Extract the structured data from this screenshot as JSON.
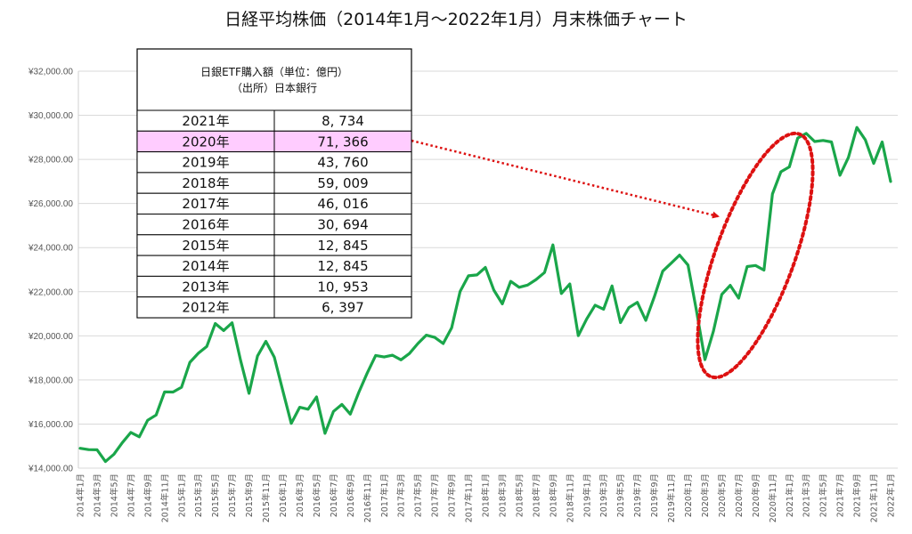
{
  "chart_data": {
    "type": "line",
    "title": "日経平均株価（2014年1月～2022年1月）月末株価チャート",
    "xlabel": "",
    "ylabel": "",
    "ylim": [
      14000,
      32000
    ],
    "yticks": [
      "¥14,000.00",
      "¥16,000.00",
      "¥18,000.00",
      "¥20,000.00",
      "¥22,000.00",
      "¥24,000.00",
      "¥26,000.00",
      "¥28,000.00",
      "¥30,000.00",
      "¥32,000.00"
    ],
    "grid": true,
    "line_color": "#1aa64a",
    "x": [
      "2014年1月",
      "2014年2月",
      "2014年3月",
      "2014年4月",
      "2014年5月",
      "2014年6月",
      "2014年7月",
      "2014年8月",
      "2014年9月",
      "2014年10月",
      "2014年11月",
      "2014年12月",
      "2015年1月",
      "2015年2月",
      "2015年3月",
      "2015年4月",
      "2015年5月",
      "2015年6月",
      "2015年7月",
      "2015年8月",
      "2015年9月",
      "2015年10月",
      "2015年11月",
      "2015年12月",
      "2016年1月",
      "2016年2月",
      "2016年3月",
      "2016年4月",
      "2016年5月",
      "2016年6月",
      "2016年7月",
      "2016年8月",
      "2016年9月",
      "2016年10月",
      "2016年11月",
      "2016年12月",
      "2017年1月",
      "2017年2月",
      "2017年3月",
      "2017年4月",
      "2017年5月",
      "2017年6月",
      "2017年7月",
      "2017年8月",
      "2017年9月",
      "2017年10月",
      "2017年11月",
      "2017年12月",
      "2018年1月",
      "2018年2月",
      "2018年3月",
      "2018年4月",
      "2018年5月",
      "2018年6月",
      "2018年7月",
      "2018年8月",
      "2018年9月",
      "2018年10月",
      "2018年11月",
      "2018年12月",
      "2019年1月",
      "2019年2月",
      "2019年3月",
      "2019年4月",
      "2019年5月",
      "2019年6月",
      "2019年7月",
      "2019年8月",
      "2019年9月",
      "2019年10月",
      "2019年11月",
      "2019年12月",
      "2020年1月",
      "2020年2月",
      "2020年3月",
      "2020年4月",
      "2020年5月",
      "2020年6月",
      "2020年7月",
      "2020年8月",
      "2020年9月",
      "2020年10月",
      "2020年11月",
      "2020年12月",
      "2021年1月",
      "2021年2月",
      "2021年3月",
      "2021年4月",
      "2021年5月",
      "2021年6月",
      "2021年7月",
      "2021年8月",
      "2021年9月",
      "2021年10月",
      "2021年11月",
      "2021年12月",
      "2022年1月"
    ],
    "x_tick_labels": [
      "2014年1月",
      "2014年3月",
      "2014年5月",
      "2014年7月",
      "2014年9月",
      "2014年11月",
      "2015年1月",
      "2015年3月",
      "2015年5月",
      "2015年7月",
      "2015年9月",
      "2015年11月",
      "2016年1月",
      "2016年3月",
      "2016年5月",
      "2016年7月",
      "2016年9月",
      "2016年11月",
      "2017年1月",
      "2017年3月",
      "2017年5月",
      "2017年7月",
      "2017年9月",
      "2017年11月",
      "2018年1月",
      "2018年3月",
      "2018年5月",
      "2018年7月",
      "2018年9月",
      "2018年11月",
      "2019年1月",
      "2019年3月",
      "2019年5月",
      "2019年7月",
      "2019年9月",
      "2019年11月",
      "2020年1月",
      "2020年3月",
      "2020年5月",
      "2020年7月",
      "2020年9月",
      "2020年11月",
      "2021年1月",
      "2021年3月",
      "2021年5月",
      "2021年7月",
      "2021年9月",
      "2021年11月",
      "2022年1月"
    ],
    "series": [
      {
        "values": [
          14900,
          14840,
          14830,
          14300,
          14630,
          15160,
          15620,
          15420,
          16170,
          16410,
          17460,
          17450,
          17670,
          18800,
          19210,
          19520,
          20560,
          20240,
          20590,
          18890,
          17390,
          19080,
          19750,
          19030,
          17520,
          16030,
          16760,
          16670,
          17230,
          15580,
          16570,
          16890,
          16450,
          17430,
          18310,
          19110,
          19040,
          19120,
          18910,
          19200,
          19650,
          20030,
          19930,
          19650,
          20360,
          22010,
          22720,
          22760,
          23100,
          22070,
          21450,
          22470,
          22200,
          22300,
          22550,
          22870,
          24120,
          21920,
          22350,
          20010,
          20770,
          21390,
          21210,
          22260,
          20600,
          21280,
          21520,
          20700,
          21760,
          22930,
          23290,
          23660,
          23210,
          21140,
          18920,
          20190,
          21880,
          22290,
          21710,
          23140,
          23190,
          22980,
          26430,
          27440,
          27660,
          28970,
          29180,
          28810,
          28860,
          28790,
          27280,
          28090,
          29450,
          28890,
          27820,
          28790,
          27000
        ]
      }
    ],
    "table": {
      "title_line1": "日銀ETF購入額（単位：億円）",
      "title_line2": "（出所）日本銀行",
      "highlight_color": "#ffccff",
      "rows": [
        {
          "year": "2021年",
          "amount": "8, 734",
          "highlight": false
        },
        {
          "year": "2020年",
          "amount": "71, 366",
          "highlight": true
        },
        {
          "year": "2019年",
          "amount": "43, 760",
          "highlight": false
        },
        {
          "year": "2018年",
          "amount": "59, 009",
          "highlight": false
        },
        {
          "year": "2017年",
          "amount": "46, 016",
          "highlight": false
        },
        {
          "year": "2016年",
          "amount": "30, 694",
          "highlight": false
        },
        {
          "year": "2015年",
          "amount": "12, 845",
          "highlight": false
        },
        {
          "year": "2014年",
          "amount": "12, 845",
          "highlight": false
        },
        {
          "year": "2013年",
          "amount": "10, 953",
          "highlight": false
        },
        {
          "year": "2012年",
          "amount": "6, 397",
          "highlight": false
        }
      ]
    },
    "annotation_color": "#dd1111"
  }
}
